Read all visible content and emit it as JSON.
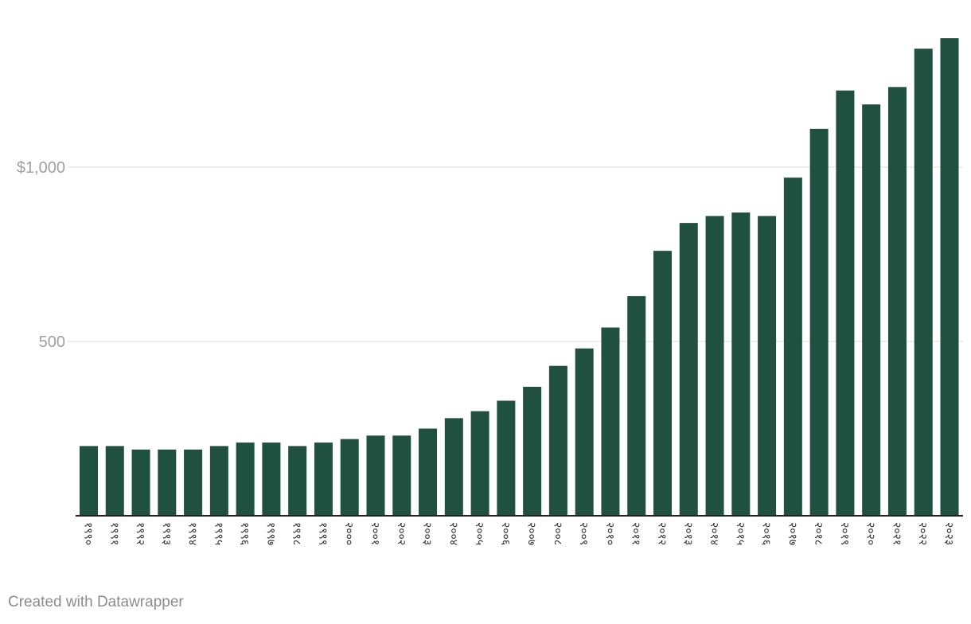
{
  "chart_data": {
    "type": "bar",
    "title": "",
    "xlabel": "",
    "ylabel": "",
    "ylim": [
      0,
      1370
    ],
    "y_ticks": [
      {
        "value": 500,
        "label": "500"
      },
      {
        "value": 1000,
        "label": "$1,000"
      }
    ],
    "categories": [
      "१९९०",
      "१९९१",
      "१९९२",
      "१९९३",
      "१९९४",
      "१९९५",
      "१९९६",
      "१९९७",
      "१९९८",
      "१९९९",
      "२०००",
      "२००१",
      "२००२",
      "२००३",
      "२००४",
      "२००५",
      "२००६",
      "२००७",
      "२००८",
      "२००९",
      "२०१०",
      "२०११",
      "२०१२",
      "२०१३",
      "२०१४",
      "२०१५",
      "२०१६",
      "२०१७",
      "२०१८",
      "२०१९",
      "२०२०",
      "२०२१",
      "२०२२",
      "२०२३"
    ],
    "values": [
      200,
      200,
      190,
      190,
      190,
      200,
      210,
      210,
      200,
      210,
      220,
      230,
      230,
      250,
      280,
      300,
      330,
      370,
      430,
      480,
      540,
      630,
      760,
      840,
      860,
      870,
      860,
      970,
      1110,
      1220,
      1180,
      1230,
      1340,
      1370
    ],
    "bar_color": "#1f5040",
    "grid": true
  },
  "credit": "Created with Datawrapper"
}
